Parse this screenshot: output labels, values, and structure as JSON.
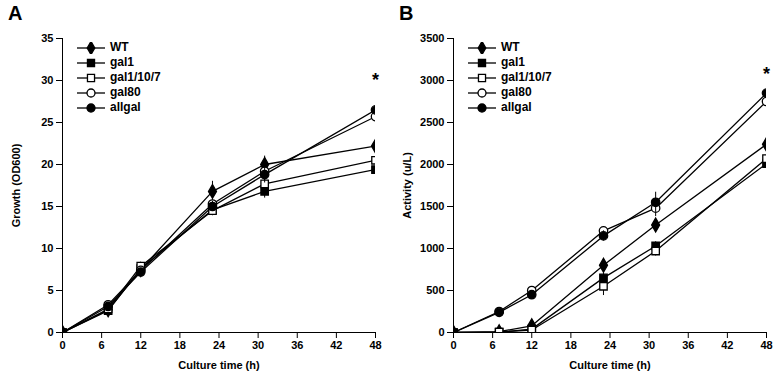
{
  "chart_data": [
    {
      "type": "line",
      "title": "A",
      "xlabel": "Culture time (h)",
      "ylabel": "Growth (OD600)",
      "x": [
        0,
        7,
        12,
        23,
        31,
        48
      ],
      "xlim": [
        0,
        48
      ],
      "xticks": [
        0,
        6,
        12,
        18,
        24,
        30,
        36,
        42,
        48
      ],
      "ylim": [
        0,
        35
      ],
      "yticks": [
        0,
        5,
        10,
        15,
        20,
        25,
        30,
        35
      ],
      "legend": "upper left",
      "series": [
        {
          "name": "WT",
          "color": "#000000",
          "marker": "diamond",
          "values": [
            0,
            2.7,
            7.5,
            16.8,
            20.0,
            22.2
          ],
          "errors": [
            0,
            0.2,
            0.3,
            1.2,
            1.0,
            1.6
          ]
        },
        {
          "name": "gal1",
          "color": "#000000",
          "marker": "square",
          "values": [
            0,
            2.6,
            7.6,
            14.6,
            16.8,
            19.4
          ],
          "errors": [
            0,
            0.2,
            0.3,
            0.5,
            0.8,
            0.6
          ]
        },
        {
          "name": "gal1/10/7",
          "color": "#000000",
          "marker": "square-open",
          "values": [
            0,
            2.8,
            7.9,
            14.5,
            17.7,
            20.5
          ],
          "errors": [
            0,
            0.2,
            0.3,
            0.6,
            0.9,
            1.2
          ]
        },
        {
          "name": "gal80",
          "color": "#000000",
          "marker": "circle-open",
          "values": [
            0,
            3.3,
            7.4,
            15.3,
            19.2,
            25.7
          ],
          "errors": [
            0,
            0.3,
            0.3,
            0.7,
            1.0,
            1.8
          ]
        },
        {
          "name": "allgal",
          "color": "#000000",
          "marker": "circle",
          "values": [
            0,
            3.1,
            7.2,
            15.0,
            18.8,
            26.5
          ],
          "errors": [
            0,
            0.2,
            0.3,
            0.6,
            1.0,
            2.0
          ]
        }
      ],
      "annotations": [
        {
          "x": 48,
          "y": 30,
          "text": "*"
        }
      ]
    },
    {
      "type": "line",
      "title": "B",
      "xlabel": "Culture time (h)",
      "ylabel": "Activity (u/L)",
      "x": [
        0,
        7,
        12,
        23,
        31,
        48
      ],
      "xlim": [
        0,
        48
      ],
      "xticks": [
        0,
        6,
        12,
        18,
        24,
        30,
        36,
        42,
        48
      ],
      "ylim": [
        0,
        3500
      ],
      "yticks": [
        0,
        500,
        1000,
        1500,
        2000,
        2500,
        3000,
        3500
      ],
      "legend": "upper left",
      "series": [
        {
          "name": "WT",
          "color": "#000000",
          "marker": "diamond",
          "values": [
            0,
            10,
            80,
            800,
            1280,
            2240
          ],
          "errors": [
            0,
            5,
            20,
            40,
            40,
            50
          ]
        },
        {
          "name": "gal1",
          "color": "#000000",
          "marker": "square",
          "values": [
            0,
            5,
            40,
            650,
            1030,
            2010
          ],
          "errors": [
            0,
            5,
            20,
            60,
            50,
            40
          ]
        },
        {
          "name": "gal1/10/7",
          "color": "#000000",
          "marker": "square-open",
          "values": [
            0,
            5,
            30,
            550,
            970,
            2070
          ],
          "errors": [
            0,
            5,
            15,
            110,
            60,
            60
          ]
        },
        {
          "name": "gal80",
          "color": "#000000",
          "marker": "circle-open",
          "values": [
            0,
            250,
            500,
            1210,
            1480,
            2750
          ],
          "errors": [
            0,
            30,
            30,
            50,
            100,
            130
          ]
        },
        {
          "name": "allgal",
          "color": "#000000",
          "marker": "circle",
          "values": [
            0,
            240,
            450,
            1150,
            1550,
            2850
          ],
          "errors": [
            0,
            30,
            40,
            60,
            120,
            130
          ]
        }
      ],
      "annotations": [
        {
          "x": 48,
          "y": 3080,
          "text": "*"
        }
      ]
    }
  ]
}
